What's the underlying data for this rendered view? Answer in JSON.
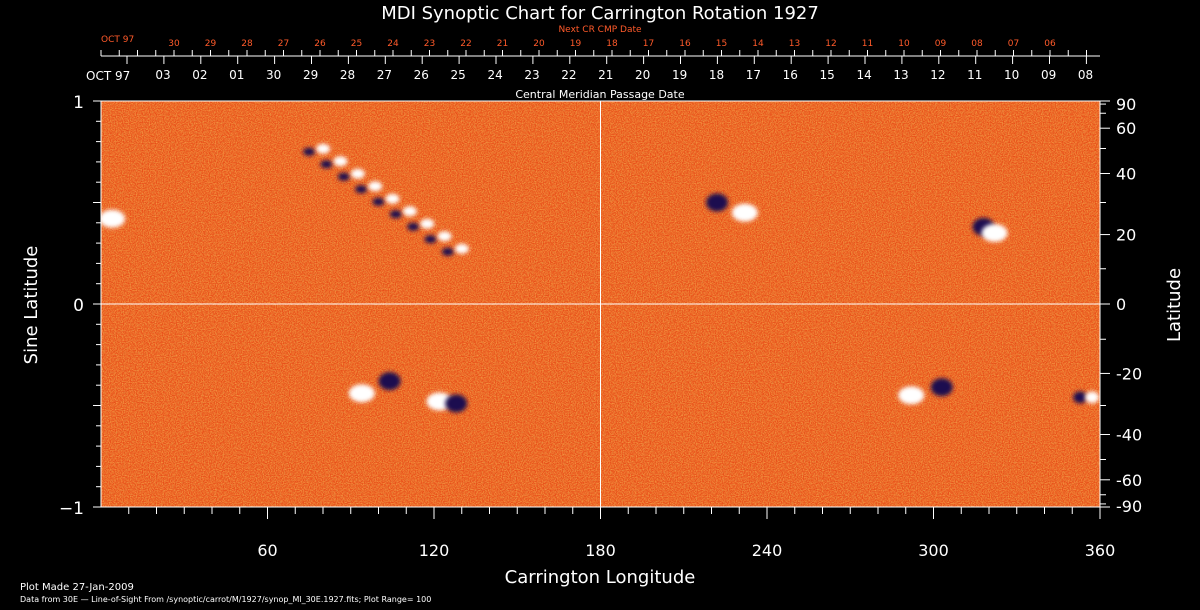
{
  "chart_data": {
    "type": "heatmap",
    "title": "MDI Synoptic Chart for Carrington Rotation 1927",
    "next_cr_label": "Next CR CMP Date",
    "next_cr_month": "OCT 97",
    "next_cr_days": [
      "30",
      "29",
      "28",
      "27",
      "26",
      "25",
      "24",
      "23",
      "22",
      "21",
      "20",
      "19",
      "18",
      "17",
      "16",
      "15",
      "14",
      "13",
      "12",
      "11",
      "10",
      "09",
      "08",
      "07",
      "06"
    ],
    "cmp_month": "OCT 97",
    "cmp_days": [
      "03",
      "02",
      "01",
      "30",
      "29",
      "28",
      "27",
      "26",
      "25",
      "24",
      "23",
      "22",
      "21",
      "20",
      "19",
      "18",
      "17",
      "16",
      "15",
      "14",
      "13",
      "12",
      "11",
      "10",
      "09",
      "08"
    ],
    "cmp_label": "Central Meridian Passage Date",
    "xlabel": "Carrington Longitude",
    "ylabel_left": "Sine Latitude",
    "ylabel_right": "Latitude",
    "xlim": [
      0,
      360
    ],
    "ylim": [
      -1,
      1
    ],
    "x_ticks": [
      60,
      120,
      180,
      240,
      300,
      360
    ],
    "y_ticks_left": [
      "1",
      "0",
      "−1"
    ],
    "lat_ticks": [
      90,
      60,
      40,
      20,
      0,
      -20,
      -40,
      -60,
      -90
    ],
    "grid_lines": {
      "longitude": 180,
      "sine_latitude": 0
    },
    "colors": {
      "background_field": "#e8501a",
      "positive": "#ffffff",
      "negative": "#1a1050",
      "text": "#ffffff",
      "next_cr_text": "#ff5a2a"
    },
    "active_regions": [
      {
        "lon": 100,
        "sinlat": 0.5,
        "polarity": "bipolar-band",
        "extent_lon": 50
      },
      {
        "lon": 222,
        "sinlat": 0.5,
        "polarity": "negative"
      },
      {
        "lon": 232,
        "sinlat": 0.45,
        "polarity": "positive"
      },
      {
        "lon": 318,
        "sinlat": 0.38,
        "polarity": "negative"
      },
      {
        "lon": 322,
        "sinlat": 0.35,
        "polarity": "positive"
      },
      {
        "lon": 4,
        "sinlat": 0.42,
        "polarity": "positive"
      },
      {
        "lon": 94,
        "sinlat": -0.44,
        "polarity": "positive"
      },
      {
        "lon": 104,
        "sinlat": -0.38,
        "polarity": "negative"
      },
      {
        "lon": 122,
        "sinlat": -0.48,
        "polarity": "positive"
      },
      {
        "lon": 128,
        "sinlat": -0.49,
        "polarity": "negative"
      },
      {
        "lon": 292,
        "sinlat": -0.45,
        "polarity": "positive"
      },
      {
        "lon": 303,
        "sinlat": -0.41,
        "polarity": "negative"
      },
      {
        "lon": 355,
        "sinlat": -0.46,
        "polarity": "mixed"
      }
    ]
  },
  "footer": {
    "plot_made": "Plot Made 27-Jan-2009",
    "data_from": "Data from 30E — Line-of-Sight From /synoptic/carrot/M/1927/synop_Ml_30E.1927.fits; Plot Range=  100"
  }
}
